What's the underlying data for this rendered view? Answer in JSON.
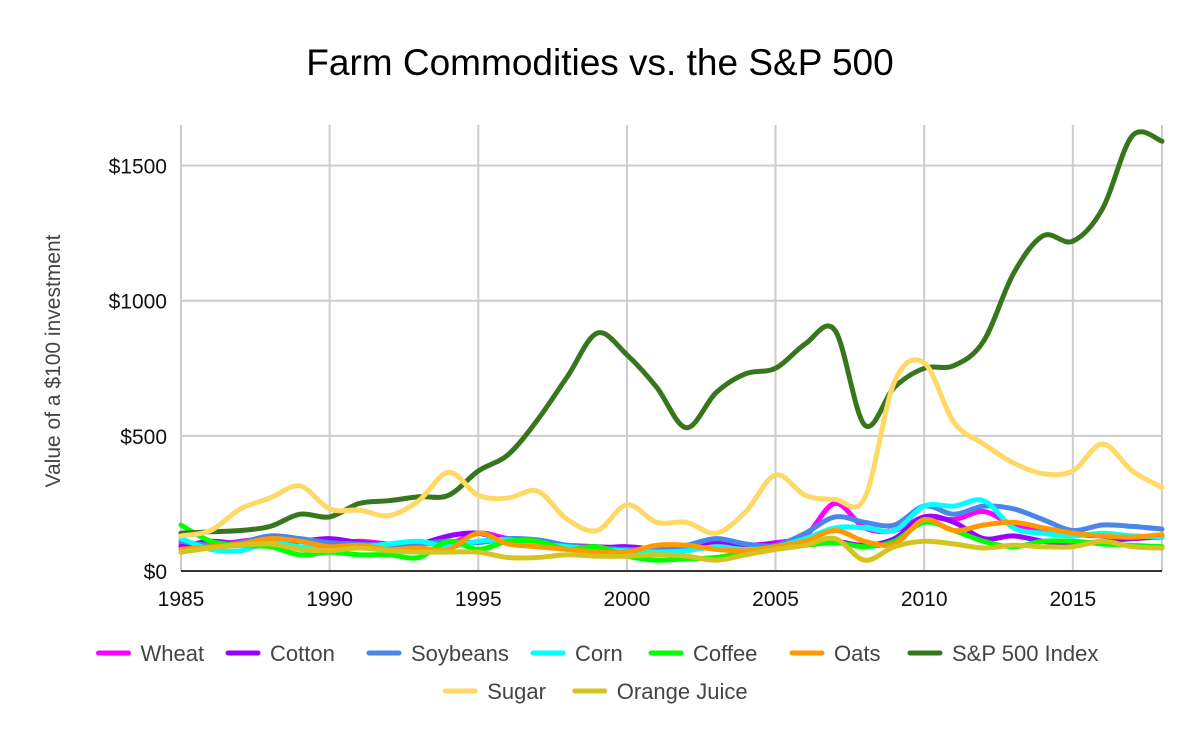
{
  "chart_data": {
    "type": "line",
    "title": "Farm Commodities vs. the S&P 500",
    "xlabel": "",
    "ylabel": "Value of a $100 investment",
    "xlim": [
      1985,
      2018
    ],
    "ylim": [
      0,
      1650
    ],
    "x_ticks": [
      1985,
      1990,
      1995,
      2000,
      2005,
      2010,
      2015
    ],
    "y_ticks": [
      {
        "value": 0,
        "label": "$0"
      },
      {
        "value": 500,
        "label": "$500"
      },
      {
        "value": 1000,
        "label": "$1000"
      },
      {
        "value": 1500,
        "label": "$1500"
      }
    ],
    "grid": true,
    "legend_position": "bottom",
    "x": [
      1985,
      1986,
      1987,
      1988,
      1989,
      1990,
      1991,
      1992,
      1993,
      1994,
      1995,
      1996,
      1997,
      1998,
      1999,
      2000,
      2001,
      2002,
      2003,
      2004,
      2005,
      2006,
      2007,
      2008,
      2009,
      2010,
      2011,
      2012,
      2013,
      2014,
      2015,
      2016,
      2017,
      2018
    ],
    "series": [
      {
        "name": "Wheat",
        "color": "#ff00ff",
        "values": [
          100,
          95,
          110,
          120,
          115,
          100,
          110,
          100,
          105,
          100,
          140,
          120,
          110,
          95,
          90,
          85,
          80,
          90,
          100,
          95,
          105,
          130,
          250,
          160,
          150,
          200,
          190,
          220,
          170,
          150,
          135,
          130,
          125,
          130
        ]
      },
      {
        "name": "Cotton",
        "color": "#9900ff",
        "values": [
          90,
          110,
          100,
          105,
          110,
          120,
          105,
          95,
          100,
          130,
          140,
          110,
          105,
          90,
          85,
          90,
          80,
          80,
          110,
          95,
          100,
          105,
          110,
          95,
          120,
          200,
          180,
          120,
          130,
          110,
          100,
          110,
          120,
          125
        ]
      },
      {
        "name": "Soybeans",
        "color": "#4a86e8",
        "values": [
          110,
          95,
          105,
          130,
          120,
          105,
          100,
          95,
          100,
          110,
          105,
          120,
          115,
          95,
          85,
          80,
          80,
          95,
          120,
          100,
          95,
          140,
          200,
          180,
          170,
          240,
          210,
          240,
          230,
          190,
          150,
          170,
          165,
          155
        ]
      },
      {
        "name": "Corn",
        "color": "#00ffff",
        "values": [
          120,
          80,
          75,
          105,
          90,
          85,
          90,
          100,
          110,
          90,
          110,
          115,
          100,
          90,
          80,
          75,
          70,
          75,
          90,
          80,
          90,
          120,
          160,
          160,
          150,
          240,
          240,
          260,
          160,
          140,
          130,
          140,
          130,
          125
        ]
      },
      {
        "name": "Coffee",
        "color": "#00ff00",
        "values": [
          170,
          110,
          95,
          90,
          60,
          70,
          60,
          60,
          50,
          110,
          80,
          110,
          110,
          80,
          90,
          55,
          40,
          45,
          50,
          70,
          90,
          95,
          105,
          90,
          110,
          180,
          150,
          110,
          90,
          110,
          110,
          100,
          95,
          90
        ]
      },
      {
        "name": "Oats",
        "color": "#ff9900",
        "values": [
          80,
          90,
          100,
          120,
          110,
          90,
          95,
          80,
          85,
          80,
          140,
          100,
          90,
          80,
          70,
          70,
          95,
          95,
          80,
          75,
          90,
          110,
          150,
          110,
          100,
          190,
          150,
          170,
          180,
          160,
          140,
          130,
          125,
          135
        ]
      },
      {
        "name": "S&P 500 Index",
        "color": "#38761d",
        "values": [
          140,
          145,
          150,
          165,
          210,
          200,
          250,
          260,
          275,
          280,
          370,
          430,
          560,
          720,
          880,
          800,
          680,
          530,
          660,
          730,
          750,
          840,
          890,
          540,
          680,
          750,
          760,
          850,
          1100,
          1240,
          1220,
          1340,
          1610,
          1590
        ]
      },
      {
        "name": "Sugar",
        "color": "#ffd966",
        "values": [
          130,
          150,
          230,
          270,
          315,
          230,
          225,
          205,
          260,
          365,
          280,
          270,
          295,
          190,
          150,
          245,
          180,
          180,
          140,
          220,
          355,
          280,
          265,
          270,
          700,
          770,
          550,
          470,
          400,
          360,
          370,
          470,
          370,
          310
        ]
      },
      {
        "name": "Orange Juice",
        "color": "#d4c420",
        "values": [
          70,
          85,
          95,
          100,
          80,
          75,
          85,
          75,
          70,
          70,
          70,
          50,
          50,
          60,
          55,
          55,
          60,
          55,
          40,
          60,
          80,
          95,
          120,
          40,
          90,
          110,
          100,
          85,
          95,
          90,
          90,
          110,
          90,
          85
        ]
      }
    ]
  }
}
